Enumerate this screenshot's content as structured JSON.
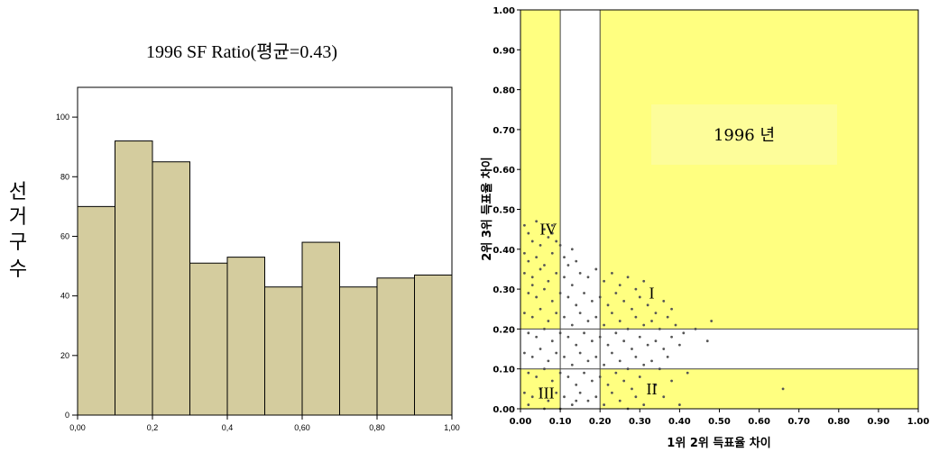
{
  "chart_data": [
    {
      "type": "bar",
      "title": "1996 SF Ratio(평균=0.43)",
      "ylabel": "선거구 수",
      "xlabel": "",
      "x_ticks": [
        "0,00",
        "0,2",
        "0,4",
        "0,60",
        "0,80",
        "1,00"
      ],
      "y_ticks": [
        "0",
        "20",
        "40",
        "60",
        "80",
        "100"
      ],
      "ylim": [
        0,
        110
      ],
      "xlim": [
        0,
        1
      ],
      "bins": [
        {
          "start": 0.0,
          "end": 0.1,
          "value": 70
        },
        {
          "start": 0.1,
          "end": 0.2,
          "value": 92
        },
        {
          "start": 0.2,
          "end": 0.3,
          "value": 85
        },
        {
          "start": 0.3,
          "end": 0.4,
          "value": 51
        },
        {
          "start": 0.4,
          "end": 0.5,
          "value": 53
        },
        {
          "start": 0.5,
          "end": 0.6,
          "value": 43
        },
        {
          "start": 0.6,
          "end": 0.7,
          "value": 58
        },
        {
          "start": 0.7,
          "end": 0.8,
          "value": 43
        },
        {
          "start": 0.8,
          "end": 0.9,
          "value": 46
        },
        {
          "start": 0.9,
          "end": 1.0,
          "value": 47
        }
      ],
      "bar_color": "#d4cc9e"
    },
    {
      "type": "scatter",
      "xlabel": "1위 2위 득표율 차이",
      "ylabel": "2위 3위 득표율 차이",
      "xlim": [
        0,
        1
      ],
      "ylim": [
        0,
        1
      ],
      "x_ticks": [
        "0.00",
        "0.10",
        "0.20",
        "0.30",
        "0.40",
        "0.50",
        "0.60",
        "0.70",
        "0.80",
        "0.90",
        "1.00"
      ],
      "y_ticks": [
        "0.00",
        "0.10",
        "0.20",
        "0.30",
        "0.40",
        "0.50",
        "0.60",
        "0.70",
        "0.80",
        "0.90",
        "1.00"
      ],
      "annotation": "1996 년",
      "quadrant_labels": [
        {
          "label": "I",
          "x": 0.33,
          "y": 0.29
        },
        {
          "label": "II",
          "x": 0.33,
          "y": 0.05
        },
        {
          "label": "III",
          "x": 0.065,
          "y": 0.04
        },
        {
          "label": "IV",
          "x": 0.07,
          "y": 0.45
        }
      ],
      "shaded_region_color": "#ffff80",
      "points": [
        [
          0.01,
          0.46
        ],
        [
          0.02,
          0.44
        ],
        [
          0.04,
          0.47
        ],
        [
          0.06,
          0.45
        ],
        [
          0.08,
          0.46
        ],
        [
          0.03,
          0.42
        ],
        [
          0.05,
          0.41
        ],
        [
          0.07,
          0.43
        ],
        [
          0.09,
          0.42
        ],
        [
          0.01,
          0.39
        ],
        [
          0.02,
          0.37
        ],
        [
          0.04,
          0.38
        ],
        [
          0.06,
          0.36
        ],
        [
          0.08,
          0.39
        ],
        [
          0.1,
          0.41
        ],
        [
          0.11,
          0.38
        ],
        [
          0.13,
          0.4
        ],
        [
          0.12,
          0.36
        ],
        [
          0.14,
          0.37
        ],
        [
          0.01,
          0.34
        ],
        [
          0.03,
          0.33
        ],
        [
          0.05,
          0.35
        ],
        [
          0.07,
          0.32
        ],
        [
          0.09,
          0.34
        ],
        [
          0.11,
          0.33
        ],
        [
          0.13,
          0.31
        ],
        [
          0.15,
          0.34
        ],
        [
          0.17,
          0.33
        ],
        [
          0.19,
          0.35
        ],
        [
          0.21,
          0.32
        ],
        [
          0.23,
          0.34
        ],
        [
          0.25,
          0.31
        ],
        [
          0.27,
          0.33
        ],
        [
          0.29,
          0.3
        ],
        [
          0.31,
          0.32
        ],
        [
          0.02,
          0.29
        ],
        [
          0.04,
          0.28
        ],
        [
          0.06,
          0.3
        ],
        [
          0.08,
          0.27
        ],
        [
          0.1,
          0.29
        ],
        [
          0.12,
          0.28
        ],
        [
          0.14,
          0.26
        ],
        [
          0.16,
          0.29
        ],
        [
          0.18,
          0.27
        ],
        [
          0.2,
          0.28
        ],
        [
          0.22,
          0.26
        ],
        [
          0.24,
          0.29
        ],
        [
          0.26,
          0.27
        ],
        [
          0.28,
          0.25
        ],
        [
          0.3,
          0.28
        ],
        [
          0.32,
          0.26
        ],
        [
          0.34,
          0.24
        ],
        [
          0.36,
          0.27
        ],
        [
          0.38,
          0.25
        ],
        [
          0.01,
          0.24
        ],
        [
          0.03,
          0.23
        ],
        [
          0.05,
          0.25
        ],
        [
          0.07,
          0.22
        ],
        [
          0.09,
          0.24
        ],
        [
          0.11,
          0.23
        ],
        [
          0.13,
          0.21
        ],
        [
          0.15,
          0.24
        ],
        [
          0.17,
          0.22
        ],
        [
          0.19,
          0.23
        ],
        [
          0.21,
          0.21
        ],
        [
          0.23,
          0.24
        ],
        [
          0.25,
          0.22
        ],
        [
          0.27,
          0.2
        ],
        [
          0.29,
          0.23
        ],
        [
          0.31,
          0.21
        ],
        [
          0.33,
          0.22
        ],
        [
          0.35,
          0.2
        ],
        [
          0.37,
          0.23
        ],
        [
          0.39,
          0.21
        ],
        [
          0.41,
          0.19
        ],
        [
          0.44,
          0.2
        ],
        [
          0.48,
          0.22
        ],
        [
          0.02,
          0.19
        ],
        [
          0.04,
          0.18
        ],
        [
          0.06,
          0.2
        ],
        [
          0.08,
          0.17
        ],
        [
          0.1,
          0.19
        ],
        [
          0.12,
          0.18
        ],
        [
          0.14,
          0.16
        ],
        [
          0.16,
          0.19
        ],
        [
          0.18,
          0.17
        ],
        [
          0.2,
          0.18
        ],
        [
          0.22,
          0.16
        ],
        [
          0.24,
          0.19
        ],
        [
          0.26,
          0.17
        ],
        [
          0.28,
          0.15
        ],
        [
          0.3,
          0.18
        ],
        [
          0.32,
          0.16
        ],
        [
          0.34,
          0.17
        ],
        [
          0.36,
          0.15
        ],
        [
          0.38,
          0.18
        ],
        [
          0.4,
          0.16
        ],
        [
          0.47,
          0.17
        ],
        [
          0.01,
          0.14
        ],
        [
          0.03,
          0.13
        ],
        [
          0.05,
          0.15
        ],
        [
          0.07,
          0.12
        ],
        [
          0.09,
          0.14
        ],
        [
          0.11,
          0.13
        ],
        [
          0.13,
          0.11
        ],
        [
          0.15,
          0.14
        ],
        [
          0.17,
          0.12
        ],
        [
          0.19,
          0.13
        ],
        [
          0.21,
          0.11
        ],
        [
          0.23,
          0.14
        ],
        [
          0.25,
          0.12
        ],
        [
          0.27,
          0.1
        ],
        [
          0.29,
          0.13
        ],
        [
          0.31,
          0.11
        ],
        [
          0.33,
          0.12
        ],
        [
          0.35,
          0.1
        ],
        [
          0.37,
          0.13
        ],
        [
          0.02,
          0.09
        ],
        [
          0.04,
          0.08
        ],
        [
          0.06,
          0.1
        ],
        [
          0.08,
          0.07
        ],
        [
          0.1,
          0.09
        ],
        [
          0.12,
          0.08
        ],
        [
          0.14,
          0.06
        ],
        [
          0.16,
          0.09
        ],
        [
          0.18,
          0.07
        ],
        [
          0.2,
          0.08
        ],
        [
          0.22,
          0.06
        ],
        [
          0.24,
          0.09
        ],
        [
          0.26,
          0.07
        ],
        [
          0.28,
          0.05
        ],
        [
          0.3,
          0.08
        ],
        [
          0.34,
          0.06
        ],
        [
          0.38,
          0.07
        ],
        [
          0.42,
          0.09
        ],
        [
          0.01,
          0.04
        ],
        [
          0.03,
          0.03
        ],
        [
          0.05,
          0.05
        ],
        [
          0.07,
          0.02
        ],
        [
          0.09,
          0.04
        ],
        [
          0.11,
          0.03
        ],
        [
          0.13,
          0.01
        ],
        [
          0.15,
          0.04
        ],
        [
          0.17,
          0.02
        ],
        [
          0.19,
          0.03
        ],
        [
          0.21,
          0.01
        ],
        [
          0.23,
          0.04
        ],
        [
          0.25,
          0.02
        ],
        [
          0.27,
          0.0
        ],
        [
          0.29,
          0.03
        ],
        [
          0.31,
          0.01
        ],
        [
          0.36,
          0.03
        ],
        [
          0.4,
          0.01
        ],
        [
          0.66,
          0.05
        ],
        [
          0.02,
          0.01
        ],
        [
          0.06,
          0.0
        ],
        [
          0.1,
          0.0
        ],
        [
          0.14,
          0.02
        ],
        [
          0.08,
          0.44
        ],
        [
          0.03,
          0.31
        ]
      ]
    }
  ]
}
